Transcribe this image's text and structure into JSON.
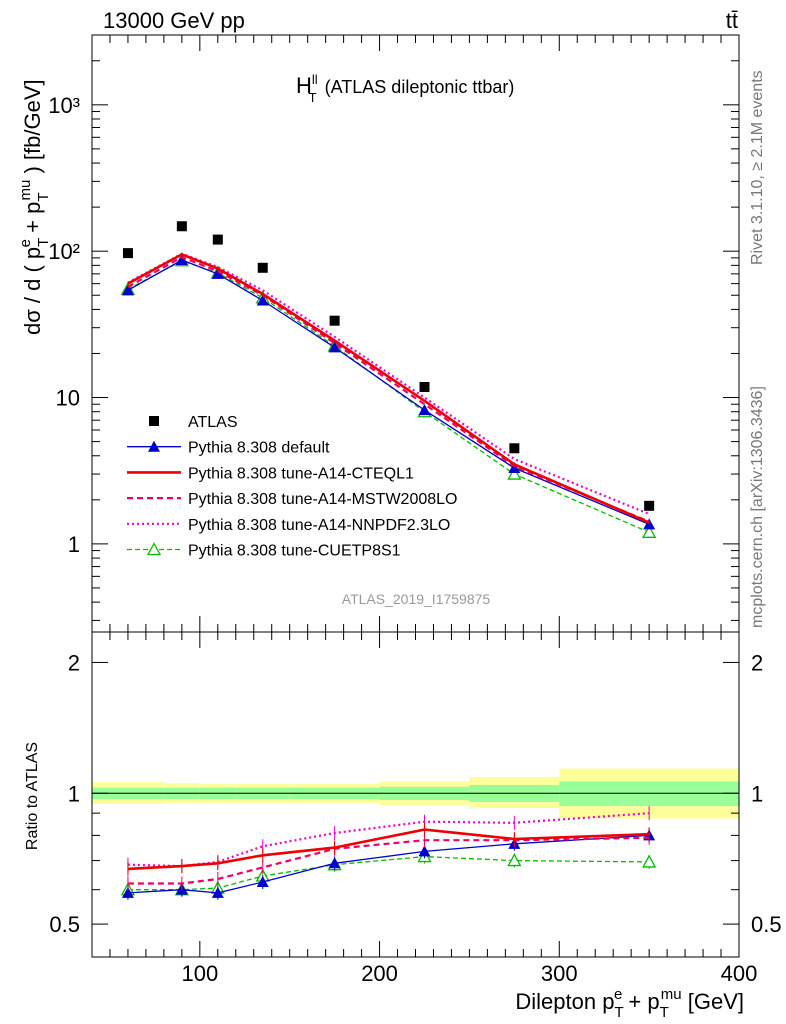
{
  "header": {
    "energy_label": "13000 GeV pp",
    "process_label": "tt̄"
  },
  "side_text": {
    "rivet": "Rivet 3.1.10, ≥ 2.1M events",
    "source": "mcplots.cern.ch [arXiv:1306.3436]"
  },
  "watermark": "ATLAS_2019_I1759875",
  "colors": {
    "atlas": "#000000",
    "default": "#0000cc",
    "cteql1": "#ee0000",
    "mstw": "#ee0066",
    "nnpdf": "#ee00cc",
    "cuetp8s1": "#00bb00",
    "band_outer": "#ffff99",
    "band_inner": "#99ff99"
  },
  "chart_data": [
    {
      "type": "line",
      "title_main": "H",
      "title_sup": "ll",
      "title_sub": "T",
      "title_rest": "(ATLAS dileptonic ttbar)",
      "ylabel_parts": {
        "pre": "dσ / d ( p",
        "sub1": "T",
        "sup1": "e",
        "mid": " + p",
        "sub2": "T",
        "sup2": "mu",
        "post": " ) [fb/GeV]"
      },
      "y_scale": "log",
      "ylim": [
        0.25,
        3000
      ],
      "xlim": [
        40,
        400
      ],
      "y_ticks": [
        {
          "value": 1,
          "label": "1"
        },
        {
          "value": 10,
          "label": "10"
        },
        {
          "value": 100,
          "label": "10²"
        },
        {
          "value": 1000,
          "label": "10³"
        }
      ],
      "legend_position": "lower-left",
      "x": [
        60,
        90,
        110,
        135,
        175,
        225,
        275,
        350
      ],
      "series": [
        {
          "name": "ATLAS",
          "key": "atlas",
          "style": "points",
          "values": [
            97,
            148,
            120,
            77,
            33.5,
            11.8,
            4.5,
            1.82
          ]
        },
        {
          "name": "Pythia 8.308 default",
          "key": "default",
          "style": "solid-triangle",
          "values": [
            54,
            87,
            70,
            46,
            22,
            8.2,
            3.3,
            1.36
          ]
        },
        {
          "name": "Pythia 8.308 tune-A14-CTEQL1",
          "key": "cteql1",
          "style": "thick-solid",
          "values": [
            60,
            95,
            76,
            51,
            24.5,
            9.5,
            3.5,
            1.4
          ]
        },
        {
          "name": "Pythia 8.308 tune-A14-MSTW2008LO",
          "key": "mstw",
          "style": "dashed",
          "values": [
            57,
            91,
            73,
            50,
            23.5,
            9.0,
            3.4,
            1.42
          ]
        },
        {
          "name": "Pythia 8.308 tune-A14-NNPDF2.3LO",
          "key": "nnpdf",
          "style": "dotted",
          "values": [
            61,
            96,
            78,
            54,
            26,
            10,
            3.8,
            1.6
          ]
        },
        {
          "name": "Pythia 8.308 tune-CUETP8S1",
          "key": "cuetp8s1",
          "style": "dashed-open-triangle",
          "values": [
            55,
            86,
            71,
            48,
            22.5,
            8.0,
            3.0,
            1.2
          ]
        }
      ]
    },
    {
      "type": "line",
      "ylabel": "Ratio to ATLAS",
      "xlabel_parts": {
        "pre": "Dilepton p",
        "sub1": "T",
        "sup1": "e",
        "mid": " + p",
        "sub2": "T",
        "sup2": "mu",
        "post": " [GeV]"
      },
      "xlim": [
        40,
        400
      ],
      "ylim": [
        0.42,
        2.35
      ],
      "y_scale": "log",
      "x_ticks": [
        100,
        200,
        300,
        400
      ],
      "y_ticks": [
        {
          "value": 0.5,
          "label": "0.5"
        },
        {
          "value": 1,
          "label": "1"
        },
        {
          "value": 2,
          "label": "2"
        }
      ],
      "bands": [
        {
          "xlo": 40,
          "xhi": 80,
          "inner": [
            0.97,
            1.03
          ],
          "outer": [
            0.945,
            1.06
          ]
        },
        {
          "xlo": 80,
          "xhi": 100,
          "inner": [
            0.97,
            1.03
          ],
          "outer": [
            0.95,
            1.055
          ]
        },
        {
          "xlo": 100,
          "xhi": 120,
          "inner": [
            0.97,
            1.03
          ],
          "outer": [
            0.95,
            1.05
          ]
        },
        {
          "xlo": 120,
          "xhi": 150,
          "inner": [
            0.97,
            1.03
          ],
          "outer": [
            0.95,
            1.05
          ]
        },
        {
          "xlo": 150,
          "xhi": 200,
          "inner": [
            0.97,
            1.03
          ],
          "outer": [
            0.95,
            1.05
          ]
        },
        {
          "xlo": 200,
          "xhi": 250,
          "inner": [
            0.965,
            1.035
          ],
          "outer": [
            0.94,
            1.065
          ]
        },
        {
          "xlo": 250,
          "xhi": 300,
          "inner": [
            0.955,
            1.045
          ],
          "outer": [
            0.925,
            1.09
          ]
        },
        {
          "xlo": 300,
          "xhi": 400,
          "inner": [
            0.935,
            1.065
          ],
          "outer": [
            0.875,
            1.14
          ]
        }
      ],
      "reference_line": 1,
      "x": [
        60,
        90,
        110,
        135,
        175,
        225,
        275,
        350
      ],
      "series": [
        {
          "name": "Pythia 8.308 default",
          "key": "default",
          "values": [
            0.59,
            0.6,
            0.59,
            0.625,
            0.69,
            0.735,
            0.765,
            0.8
          ]
        },
        {
          "name": "Pythia 8.308 tune-A14-CTEQL1",
          "key": "cteql1",
          "values": [
            0.67,
            0.68,
            0.69,
            0.72,
            0.75,
            0.825,
            0.785,
            0.805
          ]
        },
        {
          "name": "Pythia 8.308 tune-A14-MSTW2008LO",
          "key": "mstw",
          "values": [
            0.62,
            0.62,
            0.635,
            0.675,
            0.745,
            0.78,
            0.78,
            0.79
          ]
        },
        {
          "name": "Pythia 8.308 tune-A14-NNPDF2.3LO",
          "key": "nnpdf",
          "values": [
            0.685,
            0.68,
            0.695,
            0.755,
            0.81,
            0.86,
            0.855,
            0.9
          ]
        },
        {
          "name": "Pythia 8.308 tune-CUETP8S1",
          "key": "cuetp8s1",
          "values": [
            0.6,
            0.6,
            0.605,
            0.645,
            0.685,
            0.715,
            0.7,
            0.695
          ]
        }
      ]
    }
  ]
}
